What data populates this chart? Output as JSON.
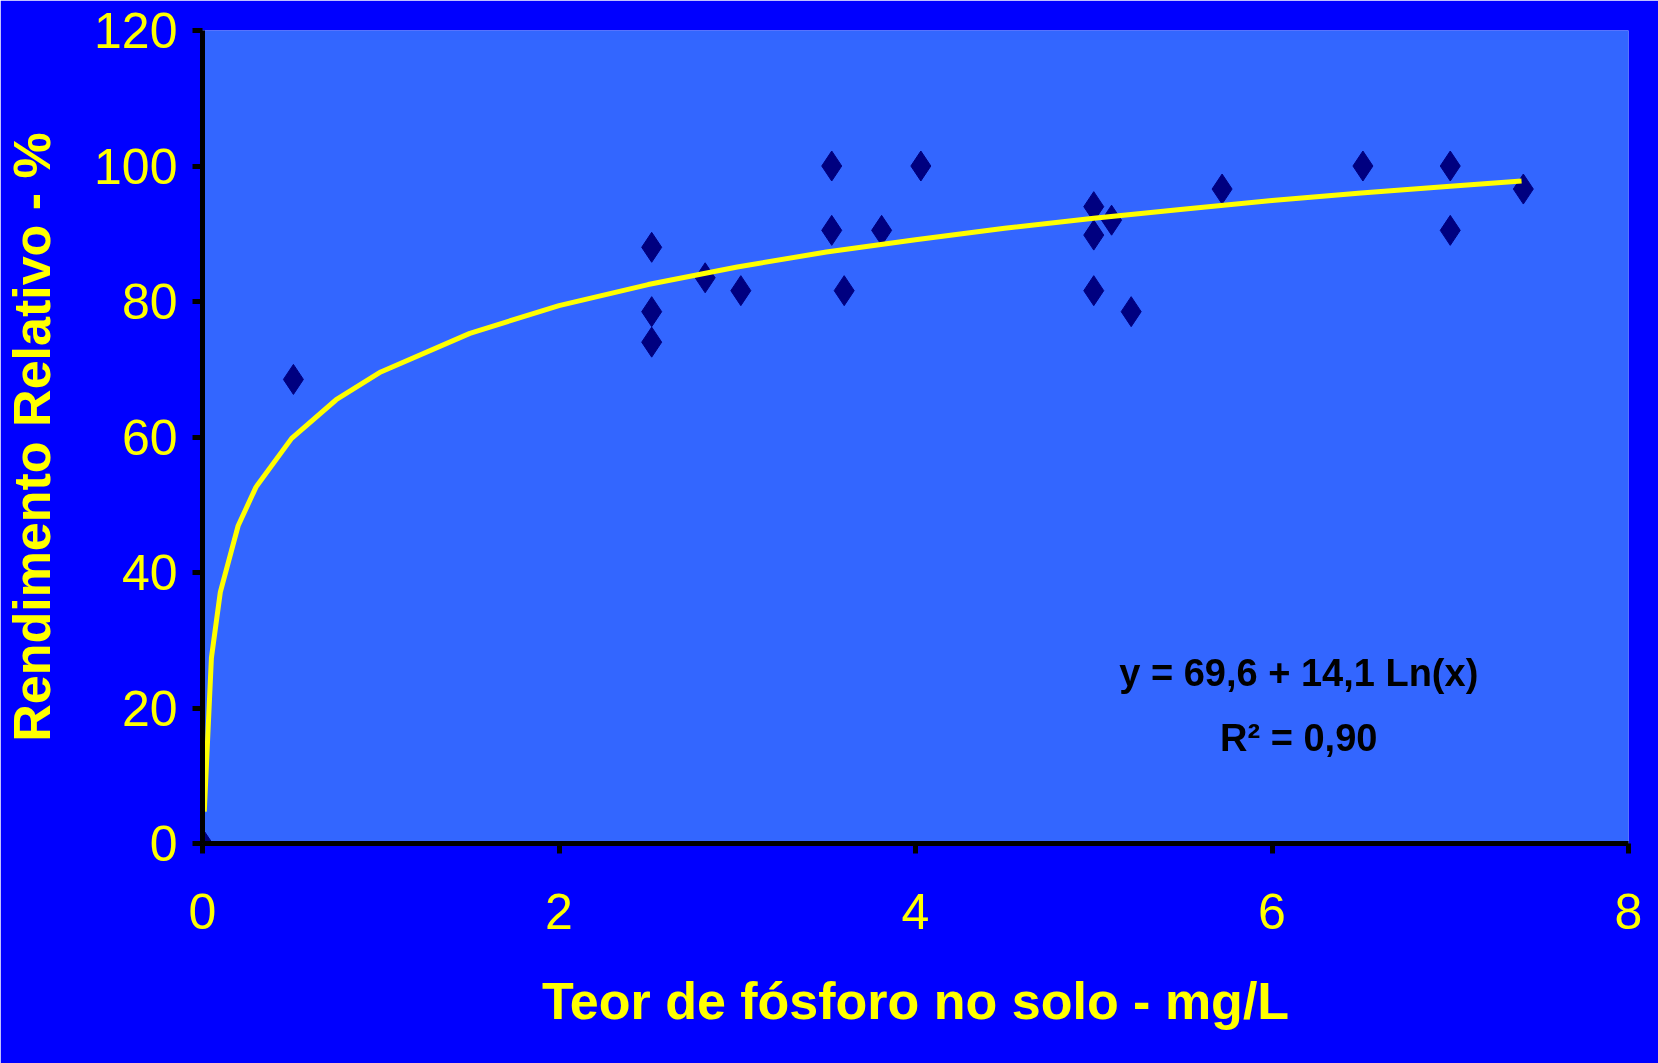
{
  "chart_data": {
    "type": "scatter",
    "xlabel": "Teor de fósforo no solo - mg/L",
    "ylabel": "Rendimento Relativo - %",
    "xlim": [
      0,
      8
    ],
    "ylim": [
      0,
      120
    ],
    "xticks": [
      0,
      2,
      4,
      6,
      8
    ],
    "yticks": [
      0,
      20,
      40,
      60,
      80,
      100,
      120
    ],
    "grid": false,
    "series": [
      {
        "marker": "diamond",
        "color": "#000080",
        "x": [
          0,
          0.51,
          2.52,
          2.52,
          2.52,
          2.82,
          3.02,
          3.53,
          3.53,
          3.6,
          3.81,
          4.03,
          5.0,
          5.0,
          5.1,
          5.0,
          5.21,
          5.72,
          6.51,
          7.0,
          7.0,
          7.41
        ],
        "values": [
          0,
          68.5,
          88,
          78.5,
          74,
          83.5,
          81.6,
          100,
          90.5,
          81.6,
          90.5,
          100,
          94,
          89.8,
          92,
          81.6,
          78.5,
          96.6,
          100,
          100,
          90.5,
          96.6
        ]
      },
      {
        "type": "line",
        "marker": "none",
        "line_style": "solid",
        "color": "#ffff00",
        "x": [
          0.01,
          0.05,
          0.1,
          0.2,
          0.3,
          0.5,
          0.75,
          1,
          1.5,
          2,
          2.5,
          3,
          3.5,
          4,
          4.5,
          5,
          5.5,
          6,
          6.5,
          7,
          7.4
        ],
        "values": [
          4.7,
          27.4,
          37.1,
          46.9,
          52.6,
          59.8,
          65.5,
          69.6,
          75.3,
          79.4,
          82.5,
          85.1,
          87.3,
          89.1,
          90.8,
          92.3,
          93.6,
          94.9,
          96.0,
          97.0,
          97.8
        ]
      }
    ],
    "annotations": [
      "y = 69,6 + 14,1 Ln(x)",
      "R² = 0,90"
    ]
  }
}
